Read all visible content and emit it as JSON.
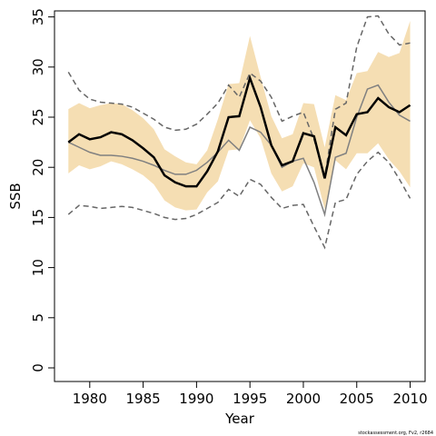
{
  "chart_data": {
    "type": "line",
    "xlabel": "Year",
    "ylabel": "SSB",
    "note": "stockassessment.org, Fv2, r2684",
    "x": [
      1978,
      1979,
      1980,
      1981,
      1982,
      1983,
      1984,
      1985,
      1986,
      1987,
      1988,
      1989,
      1990,
      1991,
      1992,
      1993,
      1994,
      1995,
      1996,
      1997,
      1998,
      1999,
      2000,
      2001,
      2002,
      2003,
      2004,
      2005,
      2006,
      2007,
      2008,
      2009,
      2010
    ],
    "xlim": [
      1976.7,
      2011.4
    ],
    "xticks": [
      1980,
      1985,
      1990,
      1995,
      2000,
      2005,
      2010
    ],
    "ylim": [
      -1.36,
      35.6
    ],
    "yticks": [
      0,
      5,
      10,
      15,
      20,
      25,
      30,
      35
    ],
    "band": {
      "color": "#f5deb3",
      "upper": [
        25.8,
        26.4,
        25.9,
        26.2,
        26.4,
        26.3,
        25.7,
        24.9,
        23.8,
        21.8,
        21.1,
        20.5,
        20.3,
        21.7,
        24.8,
        28.3,
        28.4,
        33.1,
        29.0,
        25.1,
        22.9,
        23.3,
        26.4,
        26.3,
        22.0,
        27.2,
        26.7,
        29.4,
        29.6,
        31.5,
        31.0,
        31.4,
        34.6
      ],
      "lower": [
        19.4,
        20.2,
        19.8,
        20.1,
        20.6,
        20.3,
        19.8,
        19.2,
        18.3,
        16.7,
        16.0,
        15.7,
        15.8,
        17.5,
        18.6,
        21.7,
        21.8,
        24.7,
        22.9,
        19.4,
        17.6,
        18.1,
        20.4,
        20.0,
        15.8,
        20.7,
        19.8,
        21.4,
        21.4,
        22.4,
        20.8,
        19.6,
        18.0
      ]
    },
    "series": [
      {
        "color": "#666666",
        "dashed": true,
        "width": 1.5,
        "values": [
          29.5,
          27.7,
          26.8,
          26.5,
          26.4,
          26.3,
          26.0,
          25.4,
          24.8,
          24.0,
          23.7,
          23.8,
          24.3,
          25.3,
          26.4,
          28.2,
          27.0,
          29.4,
          28.6,
          27.0,
          24.6,
          25.1,
          25.5,
          22.8,
          19.0,
          25.8,
          26.4,
          32.0,
          35.0,
          35.1,
          33.3,
          32.2,
          32.4
        ]
      },
      {
        "color": "#666666",
        "dashed": true,
        "width": 1.5,
        "values": [
          15.3,
          16.2,
          16.1,
          15.9,
          16.0,
          16.1,
          16.0,
          15.7,
          15.4,
          15.0,
          14.8,
          14.9,
          15.3,
          15.9,
          16.5,
          17.8,
          17.1,
          18.8,
          18.3,
          17.0,
          15.9,
          16.2,
          16.3,
          14.1,
          12.0,
          16.5,
          16.8,
          19.3,
          20.6,
          21.5,
          20.5,
          18.8,
          16.9
        ]
      },
      {
        "color": "#808080",
        "dashed": false,
        "width": 1.5,
        "values": [
          22.5,
          22.0,
          21.5,
          21.2,
          21.2,
          21.1,
          20.9,
          20.6,
          20.2,
          19.7,
          19.3,
          19.3,
          19.7,
          20.5,
          21.5,
          22.7,
          21.7,
          24.0,
          23.5,
          22.2,
          20.0,
          20.6,
          20.9,
          18.5,
          15.3,
          21.0,
          21.4,
          25.0,
          27.8,
          28.2,
          26.5,
          25.2,
          24.6
        ]
      },
      {
        "color": "#000000",
        "dashed": false,
        "width": 2.5,
        "values": [
          22.5,
          23.3,
          22.8,
          23.0,
          23.5,
          23.3,
          22.7,
          21.9,
          21.0,
          19.2,
          18.5,
          18.1,
          18.1,
          19.6,
          21.6,
          25.0,
          25.1,
          28.9,
          26.0,
          22.2,
          20.2,
          20.6,
          23.4,
          23.1,
          18.9,
          24.0,
          23.2,
          25.3,
          25.5,
          26.9,
          26.0,
          25.5,
          26.2
        ]
      }
    ]
  }
}
